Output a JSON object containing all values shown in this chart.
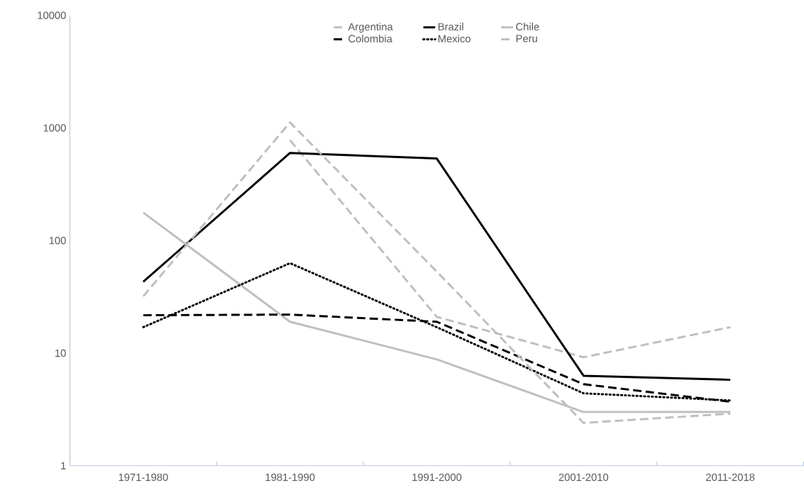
{
  "chart_data": {
    "type": "line",
    "log": "y",
    "categories": [
      "1971-1980",
      "1981-1990",
      "1991-2000",
      "2001-2010",
      "2011-2018"
    ],
    "ylim": [
      1,
      10000
    ],
    "yticks": [
      1,
      10,
      100,
      1000,
      10000
    ],
    "grid": false,
    "legend": "top",
    "marker": "none",
    "series": [
      {
        "name": "Argentina",
        "color": "#bfbfbf",
        "line_style": "dashed",
        "values": [
          null,
          780,
          21,
          9.2,
          17
        ]
      },
      {
        "name": "Brazil",
        "color": "#000000",
        "line_style": "solid",
        "values": [
          43,
          600,
          535,
          6.3,
          5.8
        ]
      },
      {
        "name": "Chile",
        "color": "#bfbfbf",
        "line_style": "solid",
        "values": [
          177,
          19,
          8.8,
          3.0,
          3.0
        ]
      },
      {
        "name": "Colombia",
        "color": "#000000",
        "line_style": "dashed",
        "values": [
          21.7,
          22,
          19,
          5.3,
          3.7
        ]
      },
      {
        "name": "Mexico",
        "color": "#000000",
        "line_style": "dotted",
        "values": [
          17,
          63,
          17,
          4.4,
          3.8
        ]
      },
      {
        "name": "Peru",
        "color": "#bfbfbf",
        "line_style": "dashed",
        "values": [
          32,
          1120,
          53,
          2.4,
          2.9
        ]
      }
    ]
  }
}
